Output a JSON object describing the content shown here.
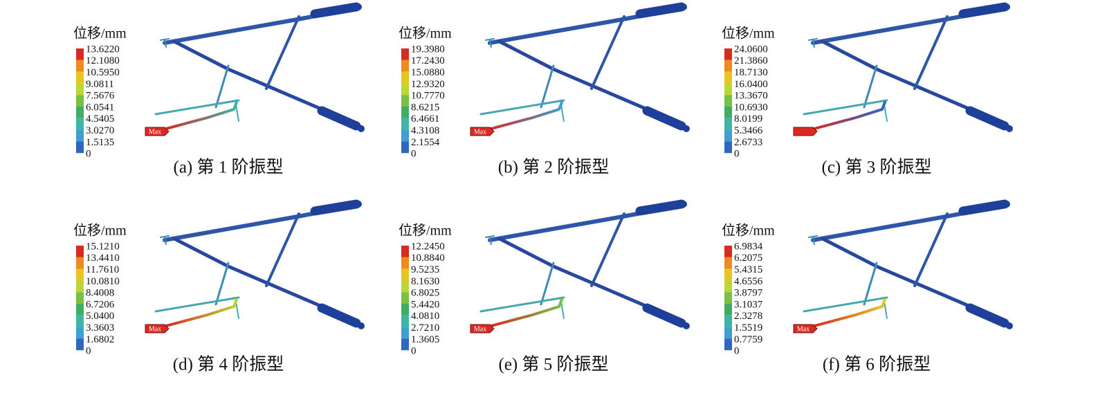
{
  "panels": [
    {
      "unit": "位移/mm",
      "legend": [
        "13.6220",
        "12.1080",
        "10.5950",
        "9.0811",
        "7.5676",
        "6.0541",
        "4.5405",
        "3.0270",
        "1.5135",
        "0"
      ],
      "max_label": "Max",
      "caption": "(a) 第 1 阶振型"
    },
    {
      "unit": "位移/mm",
      "legend": [
        "19.3980",
        "17.2430",
        "15.0880",
        "12.9320",
        "10.7770",
        "8.6215",
        "6.4661",
        "4.3108",
        "2.1554",
        "0"
      ],
      "max_label": "Max",
      "caption": "(b) 第 2 阶振型"
    },
    {
      "unit": "位移/mm",
      "legend": [
        "24.0600",
        "21.3860",
        "18.7130",
        "16.0400",
        "13.3670",
        "10.6930",
        "8.0199",
        "5.3466",
        "2.6733",
        "0"
      ],
      "caption": "(c) 第 3 阶振型"
    },
    {
      "unit": "位移/mm",
      "legend": [
        "15.1210",
        "13.4410",
        "11.7610",
        "10.0810",
        "8.4008",
        "6.7206",
        "5.0400",
        "3.3603",
        "1.6802",
        "0"
      ],
      "max_label": "Max",
      "caption": "(d) 第 4 阶振型"
    },
    {
      "unit": "位移/mm",
      "legend": [
        "12.2450",
        "10.8840",
        "9.5235",
        "8.1630",
        "6.8025",
        "5.4420",
        "4.0810",
        "2.7210",
        "1.3605",
        "0"
      ],
      "max_label": "Max",
      "caption": "(e) 第 5 阶振型"
    },
    {
      "unit": "位移/mm",
      "legend": [
        "6.9834",
        "6.2075",
        "5.4315",
        "4.6556",
        "3.8797",
        "3.1037",
        "2.3278",
        "1.5519",
        "0.7759",
        "0"
      ],
      "max_label": "Max",
      "caption": "(f) 第 6 阶振型"
    }
  ]
}
